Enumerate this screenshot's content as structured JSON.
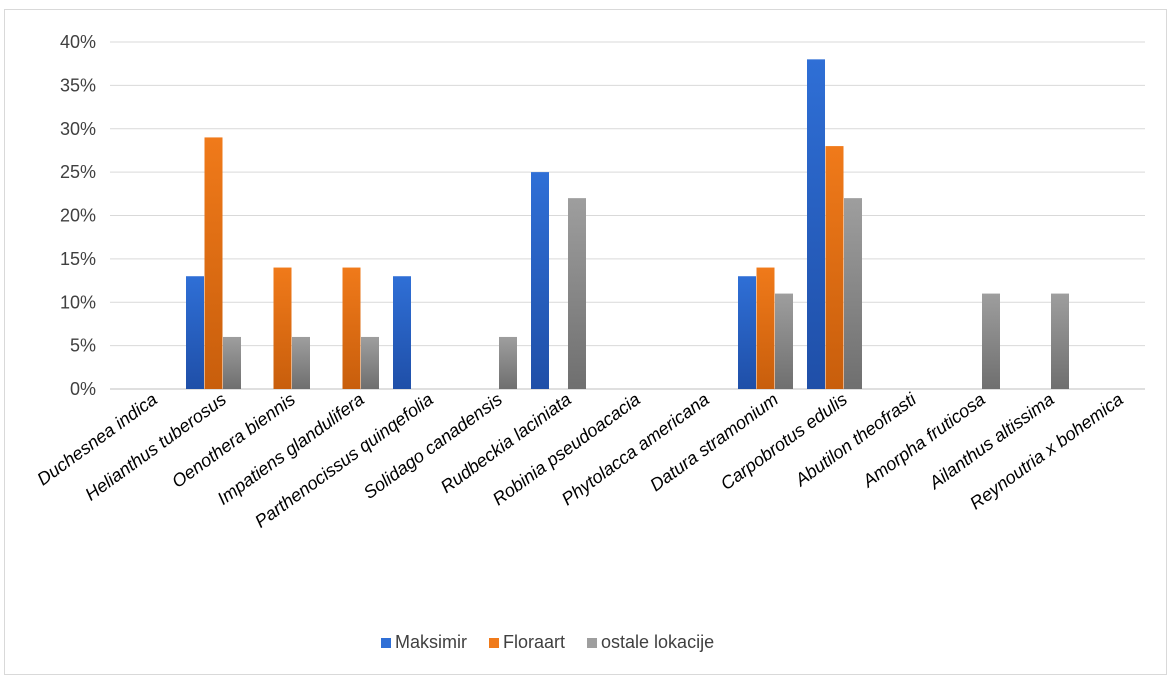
{
  "chart_data": {
    "type": "bar",
    "categories": [
      "Duchesnea indica",
      "Helianthus tuberosus",
      "Oenothera biennis",
      "Impatiens glandulifera",
      "Parthenocissus quinqefolia",
      "Solidago canadensis",
      "Rudbeckia laciniata",
      "Robinia pseudoacacia",
      "Phytolacca americana",
      "Datura stramonium",
      "Carpobrotus edulis",
      "Abutilon theofrasti",
      "Amorpha fruticosa",
      "Ailanthus altissima",
      "Reynoutria x bohemica"
    ],
    "series": [
      {
        "name": "Maksimir",
        "color": "#2f6fd6",
        "values": [
          0,
          13,
          0,
          0,
          13,
          0,
          25,
          0,
          0,
          13,
          38,
          0,
          0,
          0,
          0
        ]
      },
      {
        "name": "Floraart",
        "color": "#f07a1a",
        "values": [
          0,
          29,
          14,
          14,
          0,
          0,
          0,
          0,
          0,
          14,
          28,
          0,
          0,
          0,
          0
        ]
      },
      {
        "name": "ostale lokacije",
        "color": "#9e9e9e",
        "values": [
          0,
          6,
          6,
          6,
          0,
          6,
          22,
          0,
          0,
          11,
          22,
          0,
          11,
          11,
          0
        ]
      }
    ],
    "yticks": [
      "0%",
      "5%",
      "10%",
      "15%",
      "20%",
      "25%",
      "30%",
      "35%",
      "40%"
    ],
    "ylim": [
      0,
      40
    ],
    "grid": true,
    "legend_position": "bottom",
    "title": "",
    "xlabel": "",
    "ylabel": ""
  }
}
